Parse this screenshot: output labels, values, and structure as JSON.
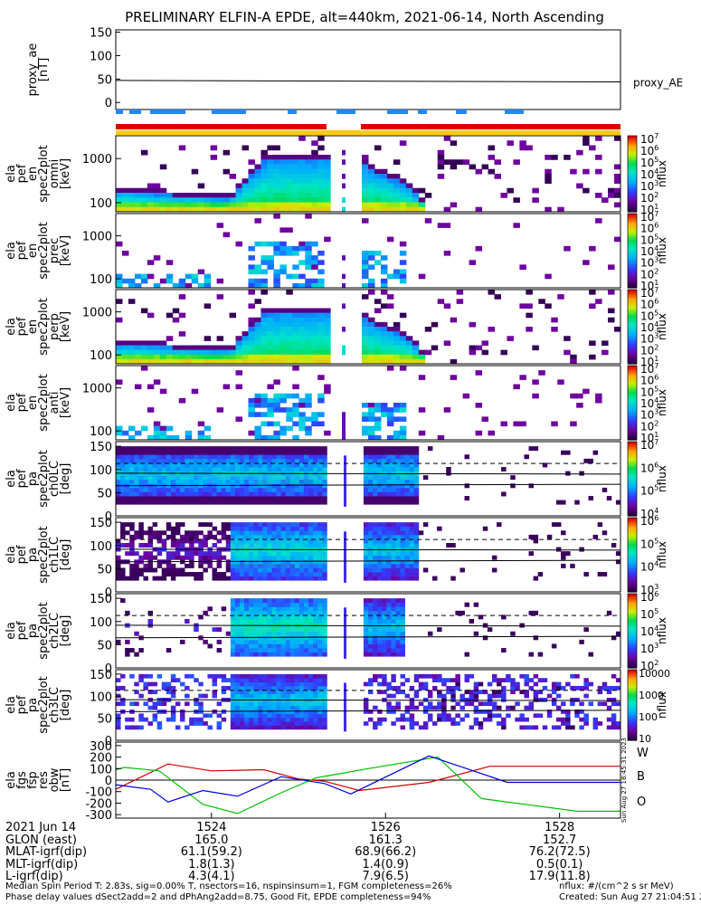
{
  "title": "PRELIMINARY ELFIN-A EPDE, alt=440km, 2021-06-14, North Ascending",
  "chart_data": {
    "type": "heatmap",
    "panels": [
      {
        "kind": "line",
        "ylabel": [
          "proxy_ae",
          "[nT]"
        ],
        "yticks": [
          "150",
          "100",
          "50",
          "0"
        ],
        "ylim": [
          -15,
          155
        ],
        "series": [
          {
            "name": "proxy_AE",
            "x": [
              1522.9,
              1528.7
            ],
            "y": [
              47,
              44
            ]
          }
        ]
      },
      {
        "kind": "spec",
        "ylabel": [
          "ela",
          "pef",
          "en",
          "spec2plot",
          "omni",
          "[keV]"
        ],
        "yticks": [
          "1000",
          "100"
        ],
        "scale": "log",
        "cbar_label": "nflux",
        "cbar_ticks": [
          "10^7",
          "10^6",
          "10^5",
          "10^4",
          "10^3",
          "10^2",
          "10^1"
        ],
        "pattern": "omni_all"
      },
      {
        "kind": "spec",
        "ylabel": [
          "ela",
          "pef",
          "en",
          "spec2plot",
          "prec",
          "[keV]"
        ],
        "yticks": [
          "1000",
          "100"
        ],
        "scale": "log",
        "cbar_label": "nflux",
        "cbar_ticks": [
          "10^7",
          "10^6",
          "10^5",
          "10^4",
          "10^3",
          "10^2",
          "10^1"
        ],
        "pattern": "prec"
      },
      {
        "kind": "spec",
        "ylabel": [
          "ela",
          "pef",
          "en",
          "spec2plot",
          "perp",
          "[keV]"
        ],
        "yticks": [
          "1000",
          "100"
        ],
        "scale": "log",
        "cbar_label": "nflux",
        "cbar_ticks": [
          "10^7",
          "10^6",
          "10^5",
          "10^4",
          "10^3",
          "10^2",
          "10^1"
        ],
        "pattern": "omni_all"
      },
      {
        "kind": "spec",
        "ylabel": [
          "ela",
          "pef",
          "en",
          "spec2plot",
          "anti",
          "[keV]"
        ],
        "yticks": [
          "1000",
          "100"
        ],
        "scale": "log",
        "cbar_label": "nflux",
        "cbar_ticks": [
          "10^7",
          "10^6",
          "10^5",
          "10^4",
          "10^3",
          "10^2",
          "10^1"
        ],
        "pattern": "prec"
      },
      {
        "kind": "pa",
        "ylabel": [
          "ela",
          "pef",
          "pa",
          "spec2plot",
          "ch0LC",
          "[deg]"
        ],
        "yticks": [
          "150",
          "100",
          "50",
          "0"
        ],
        "cbar_label": "nflux",
        "cbar_ticks": [
          "10^7",
          "10^6",
          "10^5",
          "10^4"
        ],
        "pattern": "ch0"
      },
      {
        "kind": "pa",
        "ylabel": [
          "ela",
          "pef",
          "pa",
          "spec2plot",
          "ch1LC",
          "[deg]"
        ],
        "yticks": [
          "150",
          "100",
          "50",
          "0"
        ],
        "cbar_label": "nflux",
        "cbar_ticks": [
          "10^6",
          "10^5",
          "10^4",
          "10^3"
        ],
        "pattern": "ch1"
      },
      {
        "kind": "pa",
        "ylabel": [
          "ela",
          "pef",
          "pa",
          "spec2plot",
          "ch2LC",
          "[deg]"
        ],
        "yticks": [
          "150",
          "100",
          "50",
          "0"
        ],
        "cbar_label": "nflux",
        "cbar_ticks": [
          "10^6",
          "10^5",
          "10^4",
          "10^3",
          "10^2"
        ],
        "pattern": "ch2"
      },
      {
        "kind": "pa",
        "ylabel": [
          "ela",
          "pef",
          "pa",
          "spec2plot",
          "ch3LC",
          "[deg]"
        ],
        "yticks": [
          "150",
          "100",
          "50",
          "0"
        ],
        "cbar_label": "nflux",
        "cbar_ticks": [
          "10000",
          "1000",
          "100",
          "10"
        ],
        "pattern": "ch3"
      },
      {
        "kind": "fgs",
        "ylabel": [
          "ela",
          "fgs",
          "fsp",
          "res",
          "obw",
          "[nT]"
        ],
        "yticks": [
          "300",
          "200",
          "100",
          "0",
          "-100",
          "-200",
          "-300"
        ],
        "ylim": [
          -330,
          330
        ],
        "series": [
          {
            "name": "W",
            "color": "#d40000",
            "x": [
              1522.9,
              1523.5,
              1524.0,
              1524.6,
              1525.0,
              1525.3,
              1525.7,
              1526.5,
              1527.2,
              1528.2,
              1528.7
            ],
            "y": [
              -80,
              140,
              80,
              90,
              10,
              -10,
              -90,
              -20,
              120,
              120,
              120
            ]
          },
          {
            "name": "B",
            "color": "#00c000",
            "x": [
              1522.9,
              1523.0,
              1523.4,
              1523.9,
              1524.3,
              1524.8,
              1525.2,
              1525.8,
              1526.6,
              1527.1,
              1528.2,
              1528.7
            ],
            "y": [
              90,
              110,
              80,
              -210,
              -290,
              -110,
              20,
              100,
              200,
              -160,
              -270,
              -270
            ]
          },
          {
            "name": "O",
            "color": "#0000e0",
            "x": [
              1522.9,
              1523.3,
              1523.5,
              1523.9,
              1524.3,
              1524.8,
              1525.3,
              1525.6,
              1526.5,
              1527.4,
              1528.2,
              1528.7
            ],
            "y": [
              -40,
              -80,
              -190,
              -90,
              -140,
              30,
              -30,
              -120,
              210,
              -20,
              -20,
              -20
            ]
          }
        ]
      }
    ],
    "xrange": [
      1522.9,
      1528.7
    ],
    "xticks": [
      1524,
      1526,
      1528
    ]
  },
  "ephem": {
    "rows": [
      {
        "label": "2021 Jun 14",
        "v": [
          "1524",
          "1526",
          "1528"
        ]
      },
      {
        "label": "GLON (east)",
        "v": [
          "165.0",
          "161.3",
          "152.7"
        ]
      },
      {
        "label": "MLAT-igrf(dip)",
        "v": [
          "61.1(59.2)",
          "68.9(66.2)",
          "76.2(72.5)"
        ]
      },
      {
        "label": "MLT-igrf(dip)",
        "v": [
          "1.8(1.3)",
          "1.4(0.9)",
          "0.5(0.1)"
        ]
      },
      {
        "label": "L-igrf(dip)",
        "v": [
          "4.3(4.1)",
          "7.9(6.5)",
          "17.9(11.8)"
        ]
      }
    ]
  },
  "footer": {
    "line1": "Median Spin Period T: 2.83s, sig=0.00% T, nsectors=16, nspinsinsum=1, FGM completeness=26%",
    "line2": "Phase delay values dSect2add=2 and dPhAng2add=8.75, Good Fit, EPDE completeness=94%",
    "right1": "nflux: #/(cm^2 s sr MeV)",
    "right2": "Created: Sun Aug 27 21:04:51 2023",
    "side": "Sun Aug 27 18:45:31 2023"
  },
  "colors": {
    "red_bar": "#e00000",
    "yellow_bar": "#ffcc00",
    "blue_seg": "#2288ff"
  }
}
